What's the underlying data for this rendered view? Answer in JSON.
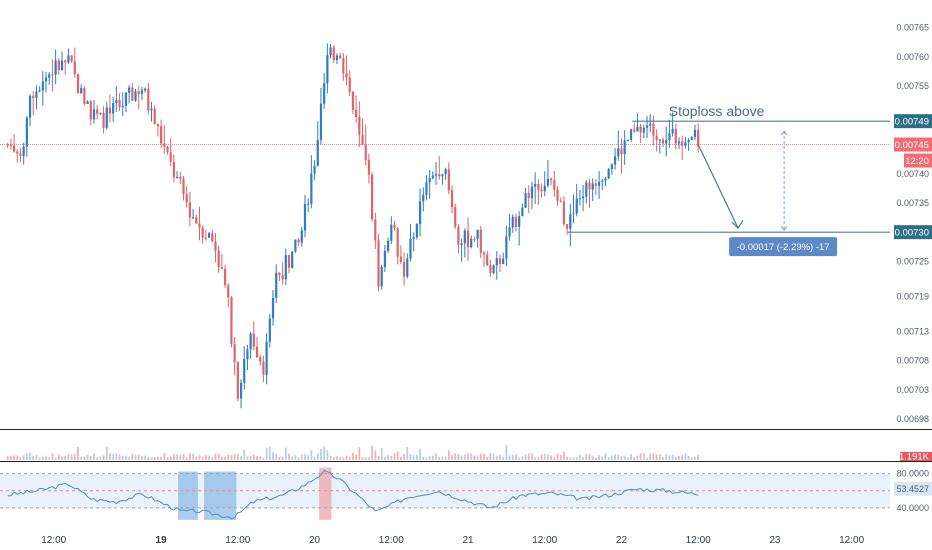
{
  "chart_data": {
    "type": "candlestick",
    "price_axis": {
      "ticks": [
        "0.00765",
        "0.00760",
        "0.00755",
        "0.00749",
        "0.00745",
        "0.00740",
        "0.00735",
        "0.00730",
        "0.00725",
        "0.00719",
        "0.00713",
        "0.00708",
        "0.00703",
        "0.00698"
      ],
      "range": [
        0.00697,
        0.00767
      ],
      "current_price_label": "0.00745",
      "countdown_label": "12:20"
    },
    "time_axis": {
      "labels": [
        {
          "t": 0.3,
          "label": "12:00",
          "bold": false
        },
        {
          "t": 1.0,
          "label": "19",
          "bold": true
        },
        {
          "t": 1.5,
          "label": "12:00",
          "bold": false
        },
        {
          "t": 2.0,
          "label": "20",
          "bold": false
        },
        {
          "t": 2.5,
          "label": "12:00",
          "bold": false
        },
        {
          "t": 3.0,
          "label": "21",
          "bold": false
        },
        {
          "t": 3.5,
          "label": "12:00",
          "bold": false
        },
        {
          "t": 4.0,
          "label": "22",
          "bold": false
        },
        {
          "t": 4.5,
          "label": "12:00",
          "bold": false
        },
        {
          "t": 5.0,
          "label": "23",
          "bold": false
        },
        {
          "t": 5.5,
          "label": "12:00",
          "bold": false
        }
      ],
      "unit": "days"
    },
    "annotations": {
      "stoploss_text": "Stoploss above",
      "stoploss_level": 0.00749,
      "target_level": 0.0073,
      "stoploss_tag": "0.00749",
      "target_tag": "0.00730",
      "measure_text": "-0.00017 (-2.29%) -17"
    },
    "anchors": [
      {
        "t": 0.0,
        "p": 0.00745
      },
      {
        "t": 0.1,
        "p": 0.00744
      },
      {
        "t": 0.15,
        "p": 0.00754
      },
      {
        "t": 0.3,
        "p": 0.00758
      },
      {
        "t": 0.4,
        "p": 0.00759
      },
      {
        "t": 0.5,
        "p": 0.00752
      },
      {
        "t": 0.6,
        "p": 0.00749
      },
      {
        "t": 0.75,
        "p": 0.00752
      },
      {
        "t": 0.87,
        "p": 0.00755
      },
      {
        "t": 0.97,
        "p": 0.00748
      },
      {
        "t": 1.05,
        "p": 0.00742
      },
      {
        "t": 1.2,
        "p": 0.00733
      },
      {
        "t": 1.35,
        "p": 0.00728
      },
      {
        "t": 1.43,
        "p": 0.00719
      },
      {
        "t": 1.5,
        "p": 0.00703
      },
      {
        "t": 1.58,
        "p": 0.00713
      },
      {
        "t": 1.67,
        "p": 0.00707
      },
      {
        "t": 1.75,
        "p": 0.00722
      },
      {
        "t": 1.9,
        "p": 0.00728
      },
      {
        "t": 2.0,
        "p": 0.00742
      },
      {
        "t": 2.08,
        "p": 0.00759
      },
      {
        "t": 2.16,
        "p": 0.00762
      },
      {
        "t": 2.25,
        "p": 0.00751
      },
      {
        "t": 2.35,
        "p": 0.0074
      },
      {
        "t": 2.42,
        "p": 0.00721
      },
      {
        "t": 2.5,
        "p": 0.00733
      },
      {
        "t": 2.58,
        "p": 0.00722
      },
      {
        "t": 2.7,
        "p": 0.00736
      },
      {
        "t": 2.83,
        "p": 0.00742
      },
      {
        "t": 2.95,
        "p": 0.00728
      },
      {
        "t": 3.05,
        "p": 0.0073
      },
      {
        "t": 3.15,
        "p": 0.00722
      },
      {
        "t": 3.25,
        "p": 0.00728
      },
      {
        "t": 3.35,
        "p": 0.00735
      },
      {
        "t": 3.45,
        "p": 0.00739
      },
      {
        "t": 3.55,
        "p": 0.00738
      },
      {
        "t": 3.65,
        "p": 0.00731
      },
      {
        "t": 3.75,
        "p": 0.00737
      },
      {
        "t": 3.9,
        "p": 0.00741
      },
      {
        "t": 4.05,
        "p": 0.00746
      },
      {
        "t": 4.15,
        "p": 0.00748
      },
      {
        "t": 4.25,
        "p": 0.00747
      },
      {
        "t": 4.35,
        "p": 0.00746
      },
      {
        "t": 4.45,
        "p": 0.00747
      },
      {
        "t": 4.5,
        "p": 0.00745
      }
    ],
    "time_range": [
      -0.05,
      5.75
    ],
    "volume_axis_label": "1.191K",
    "rsi": {
      "ticks": [
        "80.0000",
        "40.0000"
      ],
      "value_label": "53.4527",
      "upper": 80,
      "lower": 40,
      "overbought_zones": [
        [
          2.03,
          2.11
        ]
      ],
      "oversold_zones": [
        [
          1.11,
          1.24
        ],
        [
          1.28,
          1.49
        ]
      ],
      "anchors": [
        {
          "t": 0.0,
          "v": 55
        },
        {
          "t": 0.2,
          "v": 60
        },
        {
          "t": 0.4,
          "v": 68
        },
        {
          "t": 0.55,
          "v": 50
        },
        {
          "t": 0.7,
          "v": 47
        },
        {
          "t": 0.88,
          "v": 56
        },
        {
          "t": 1.0,
          "v": 46
        },
        {
          "t": 1.13,
          "v": 36
        },
        {
          "t": 1.25,
          "v": 36
        },
        {
          "t": 1.4,
          "v": 31
        },
        {
          "t": 1.48,
          "v": 29
        },
        {
          "t": 1.6,
          "v": 47
        },
        {
          "t": 1.8,
          "v": 55
        },
        {
          "t": 1.95,
          "v": 68
        },
        {
          "t": 2.06,
          "v": 82
        },
        {
          "t": 2.15,
          "v": 75
        },
        {
          "t": 2.28,
          "v": 55
        },
        {
          "t": 2.4,
          "v": 35
        },
        {
          "t": 2.6,
          "v": 52
        },
        {
          "t": 2.8,
          "v": 60
        },
        {
          "t": 3.0,
          "v": 48
        },
        {
          "t": 3.15,
          "v": 40
        },
        {
          "t": 3.35,
          "v": 55
        },
        {
          "t": 3.55,
          "v": 57
        },
        {
          "t": 3.75,
          "v": 50
        },
        {
          "t": 3.95,
          "v": 56
        },
        {
          "t": 4.1,
          "v": 62
        },
        {
          "t": 4.3,
          "v": 60
        },
        {
          "t": 4.5,
          "v": 56
        }
      ]
    },
    "colors": {
      "up": "#2e7cc2",
      "down": "#e06369",
      "line": "#4a7f90",
      "tag_teal": "#2f6f84",
      "tag_red": "#f16d73",
      "measure_box": "#5d89c9",
      "rsi_line": "#4d8ec9",
      "rsi_band": "#e9f1fb"
    }
  }
}
